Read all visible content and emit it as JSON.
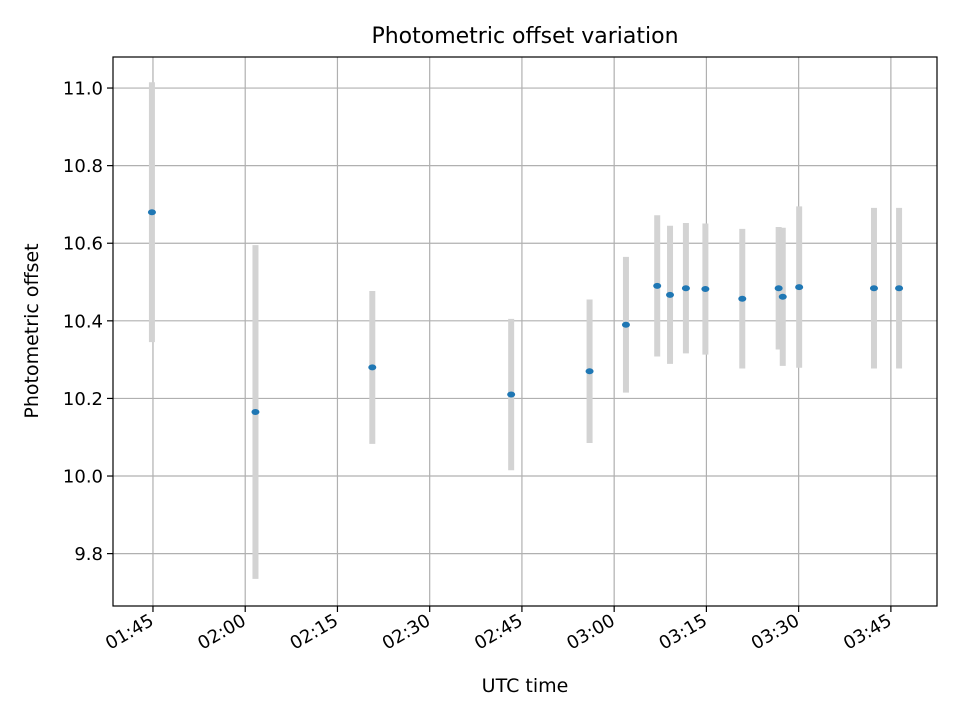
{
  "chart_data": {
    "type": "scatter",
    "title": "Photometric offset variation",
    "xlabel": "UTC time",
    "ylabel": "Photometric offset",
    "xlim": [
      "01:38:30",
      "03:52:30"
    ],
    "ylim": [
      9.665,
      11.08
    ],
    "x_ticks": [
      "01:45",
      "02:00",
      "02:15",
      "02:30",
      "02:45",
      "03:00",
      "03:15",
      "03:30",
      "03:45"
    ],
    "y_ticks": [
      "9.8",
      "10.0",
      "10.2",
      "10.4",
      "10.6",
      "10.8",
      "11.0"
    ],
    "grid": true,
    "series": [
      {
        "marker_color": "#1f77b4",
        "errorbar_color": "#d3d3d3",
        "points": [
          {
            "x": "01:44:50",
            "y": 10.68,
            "err": 0.335
          },
          {
            "x": "02:01:40",
            "y": 10.165,
            "err": 0.43
          },
          {
            "x": "02:20:40",
            "y": 10.28,
            "err": 0.197
          },
          {
            "x": "02:43:15",
            "y": 10.21,
            "err": 0.195
          },
          {
            "x": "02:56:00",
            "y": 10.27,
            "err": 0.185
          },
          {
            "x": "03:01:55",
            "y": 10.39,
            "err": 0.175
          },
          {
            "x": "03:07:00",
            "y": 10.49,
            "err": 0.182
          },
          {
            "x": "03:09:05",
            "y": 10.467,
            "err": 0.178
          },
          {
            "x": "03:11:40",
            "y": 10.484,
            "err": 0.168
          },
          {
            "x": "03:14:50",
            "y": 10.482,
            "err": 0.169
          },
          {
            "x": "03:20:50",
            "y": 10.457,
            "err": 0.18
          },
          {
            "x": "03:26:45",
            "y": 10.484,
            "err": 0.158
          },
          {
            "x": "03:27:25",
            "y": 10.462,
            "err": 0.178
          },
          {
            "x": "03:30:05",
            "y": 10.487,
            "err": 0.208
          },
          {
            "x": "03:42:15",
            "y": 10.484,
            "err": 0.207
          },
          {
            "x": "03:46:20",
            "y": 10.484,
            "err": 0.207
          }
        ]
      }
    ]
  }
}
